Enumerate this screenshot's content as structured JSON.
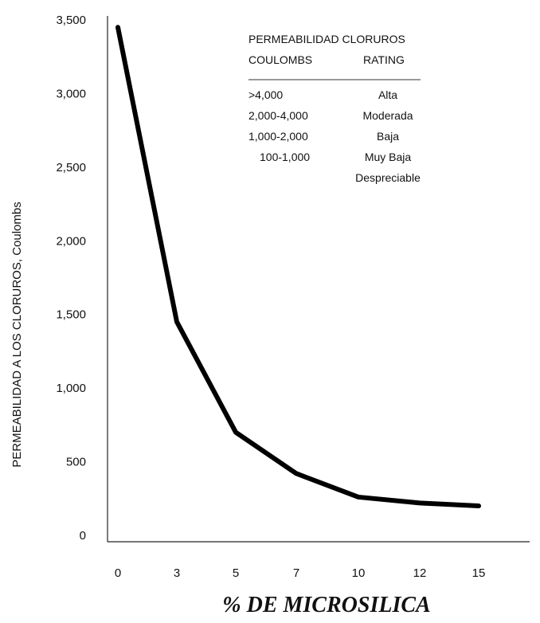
{
  "chart_data": {
    "type": "line",
    "x": [
      "0",
      "3",
      "5",
      "7",
      "10",
      "12",
      "15"
    ],
    "values": [
      3450,
      1450,
      700,
      420,
      260,
      220,
      200
    ],
    "xlabel": "% DE MICROSILICA",
    "ylabel": "PERMEABILIDAD A LOS CLORUROS, Coulombs",
    "y_ticks": [
      "0",
      "500",
      "1,000",
      "1,500",
      "2,000",
      "2,500",
      "3,000",
      "3,500"
    ],
    "ylim": [
      0,
      3500
    ],
    "grid": false,
    "line_color": "#000000",
    "legend": {
      "title": "PERMEABILIDAD CLORUROS",
      "col_headers": [
        "COULOMBS",
        "RATING"
      ],
      "rows": [
        {
          "coulombs": ">4,000",
          "rating": "Alta"
        },
        {
          "coulombs": "2,000-4,000",
          "rating": "Moderada"
        },
        {
          "coulombs": "1,000-2,000",
          "rating": "Baja"
        },
        {
          "coulombs": "100-1,000",
          "rating": "Muy Baja"
        },
        {
          "coulombs": "",
          "rating": "Despreciable"
        }
      ]
    }
  }
}
